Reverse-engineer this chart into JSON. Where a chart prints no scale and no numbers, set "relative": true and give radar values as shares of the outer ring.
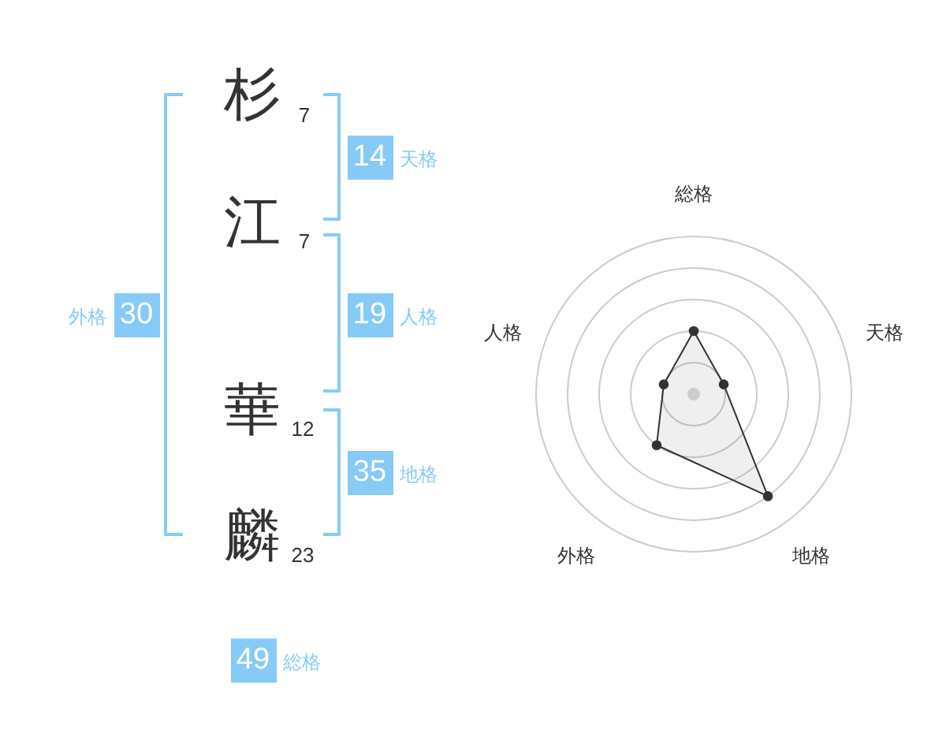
{
  "chart_data": [
    {
      "type": "other",
      "annotations": [
        "杉",
        "7",
        "江",
        "7",
        "華",
        "12",
        "麟",
        "23",
        "14",
        "天格",
        "19",
        "人格",
        "35",
        "地格",
        "30",
        "外格",
        "49",
        "総格"
      ]
    },
    {
      "type": "radar",
      "categories": [
        "総格",
        "天格",
        "地格",
        "外格",
        "人格"
      ],
      "series": [
        {
          "color": "#333333",
          "values": [
            0.4,
            0.2,
            0.8,
            0.4,
            0.2
          ]
        }
      ],
      "relative": true,
      "grid": true,
      "marker": "circle"
    }
  ]
}
